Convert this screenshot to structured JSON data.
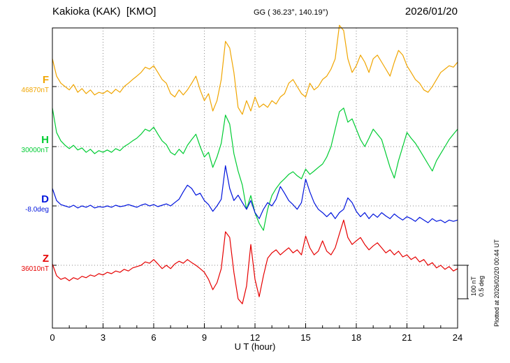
{
  "header": {
    "station": "Kakioka (KAK)  [KMO]",
    "coords": "GG ( 36.23°, 140.19°)",
    "date": "2026/01/20"
  },
  "axis": {
    "x_label": "U T (hour)",
    "x_ticks": [
      "0",
      "3",
      "6",
      "9",
      "12",
      "15",
      "18",
      "21",
      "24"
    ]
  },
  "scale_labels": {
    "nt": "100 nT",
    "deg": "0.5 deg"
  },
  "footer": {
    "plotted_at": "Plotted at 2026/02/20 00:44 UT"
  },
  "channels": [
    {
      "id": "F",
      "label": "F",
      "baseline_label": "46870nT",
      "color": "#f0a500"
    },
    {
      "id": "H",
      "label": "H",
      "baseline_label": "30000nT",
      "color": "#00cc33"
    },
    {
      "id": "D",
      "label": "D",
      "baseline_label": "-8.0deg",
      "color": "#0014dd"
    },
    {
      "id": "Z",
      "label": "Z",
      "baseline_label": "36010nT",
      "color": "#e60000"
    }
  ],
  "chart_data": {
    "type": "line",
    "xlabel": "U T (hour)",
    "x_start": 0,
    "x_end": 24,
    "x_step": 0.25,
    "x_ticks": [
      0,
      3,
      6,
      9,
      12,
      15,
      18,
      21,
      24
    ],
    "grid": "dotted",
    "scale_bar": {
      "nT": 100,
      "deg": 0.5
    },
    "series": [
      {
        "name": "F",
        "unit": "nT",
        "baseline": 46870,
        "offsets": [
          83,
          31,
          10,
          0,
          -10,
          6,
          -17,
          -6,
          -21,
          -10,
          -25,
          -17,
          -21,
          -12,
          -21,
          -8,
          -17,
          0,
          10,
          21,
          31,
          42,
          58,
          52,
          62,
          42,
          21,
          10,
          -21,
          -31,
          -10,
          -25,
          -10,
          10,
          31,
          -10,
          -42,
          -21,
          -73,
          -42,
          21,
          135,
          115,
          42,
          -62,
          -83,
          -42,
          -73,
          -31,
          -62,
          -52,
          -62,
          -42,
          -52,
          -31,
          -21,
          10,
          21,
          0,
          -21,
          -31,
          10,
          -10,
          0,
          21,
          31,
          52,
          83,
          183,
          167,
          83,
          42,
          62,
          94,
          73,
          42,
          83,
          94,
          73,
          52,
          31,
          73,
          108,
          94,
          62,
          42,
          21,
          10,
          -10,
          -17,
          0,
          21,
          42,
          52,
          62,
          58,
          73
        ]
      },
      {
        "name": "H",
        "unit": "nT",
        "baseline": 30000,
        "offsets": [
          115,
          42,
          17,
          4,
          -6,
          4,
          -10,
          -4,
          -17,
          -8,
          -21,
          -12,
          -17,
          -10,
          -17,
          -6,
          -12,
          0,
          8,
          17,
          25,
          37,
          52,
          46,
          58,
          37,
          17,
          6,
          -17,
          -25,
          -8,
          -21,
          4,
          21,
          37,
          0,
          -31,
          -17,
          -62,
          -31,
          10,
          94,
          67,
          -21,
          -73,
          -115,
          -187,
          -146,
          -198,
          -229,
          -250,
          -187,
          -146,
          -125,
          -108,
          -96,
          -83,
          -75,
          -87,
          -96,
          -67,
          -83,
          -73,
          -62,
          -52,
          -31,
          0,
          52,
          104,
          115,
          73,
          83,
          52,
          21,
          0,
          25,
          52,
          37,
          21,
          -21,
          -62,
          -94,
          -42,
          0,
          42,
          25,
          10,
          -10,
          -31,
          -52,
          -73,
          -42,
          -21,
          0,
          21,
          37,
          52
        ]
      },
      {
        "name": "D",
        "unit": "deg",
        "baseline": -8.0,
        "offsets": [
          0.26,
          0.08,
          0.02,
          0,
          -0.02,
          0.01,
          -0.03,
          0,
          -0.02,
          0.01,
          -0.03,
          -0.01,
          -0.02,
          0,
          -0.02,
          0.01,
          -0.01,
          0,
          0.02,
          0,
          -0.02,
          0.01,
          0.03,
          0,
          0.02,
          -0.01,
          0.01,
          0.03,
          0,
          0.05,
          0.1,
          0.21,
          0.31,
          0.26,
          0.16,
          0.19,
          0.08,
          0.02,
          -0.08,
          0,
          0.1,
          0.6,
          0.26,
          0.08,
          0.16,
          0.05,
          -0.05,
          0.08,
          -0.1,
          -0.19,
          -0.05,
          0.05,
          0,
          0.1,
          0.29,
          0.19,
          0.08,
          0.02,
          -0.05,
          0.05,
          0.4,
          0.21,
          0.05,
          -0.05,
          -0.1,
          -0.16,
          -0.1,
          -0.19,
          -0.1,
          -0.05,
          0.12,
          0.05,
          -0.08,
          -0.16,
          -0.1,
          -0.19,
          -0.12,
          -0.17,
          -0.1,
          -0.15,
          -0.19,
          -0.12,
          -0.17,
          -0.21,
          -0.16,
          -0.19,
          -0.23,
          -0.17,
          -0.21,
          -0.25,
          -0.19,
          -0.23,
          -0.21,
          -0.25,
          -0.21,
          -0.23,
          -0.21
        ]
      },
      {
        "name": "Z",
        "unit": "nT",
        "baseline": 36010,
        "offsets": [
          4,
          -31,
          -42,
          -37,
          -46,
          -37,
          -42,
          -33,
          -37,
          -29,
          -33,
          -25,
          -29,
          -21,
          -25,
          -17,
          -21,
          -12,
          -17,
          -8,
          -4,
          0,
          10,
          6,
          17,
          4,
          -10,
          0,
          -10,
          4,
          12,
          6,
          17,
          8,
          0,
          -10,
          -21,
          -42,
          -73,
          -52,
          -10,
          100,
          83,
          -21,
          -100,
          -115,
          -62,
          62,
          -42,
          -94,
          -31,
          21,
          37,
          46,
          31,
          42,
          52,
          37,
          46,
          31,
          87,
          52,
          31,
          42,
          73,
          42,
          31,
          52,
          94,
          135,
          83,
          62,
          73,
          83,
          62,
          46,
          58,
          67,
          52,
          37,
          46,
          31,
          42,
          25,
          31,
          17,
          25,
          10,
          17,
          0,
          8,
          -8,
          0,
          -12,
          -4,
          -17,
          -10
        ]
      }
    ]
  }
}
